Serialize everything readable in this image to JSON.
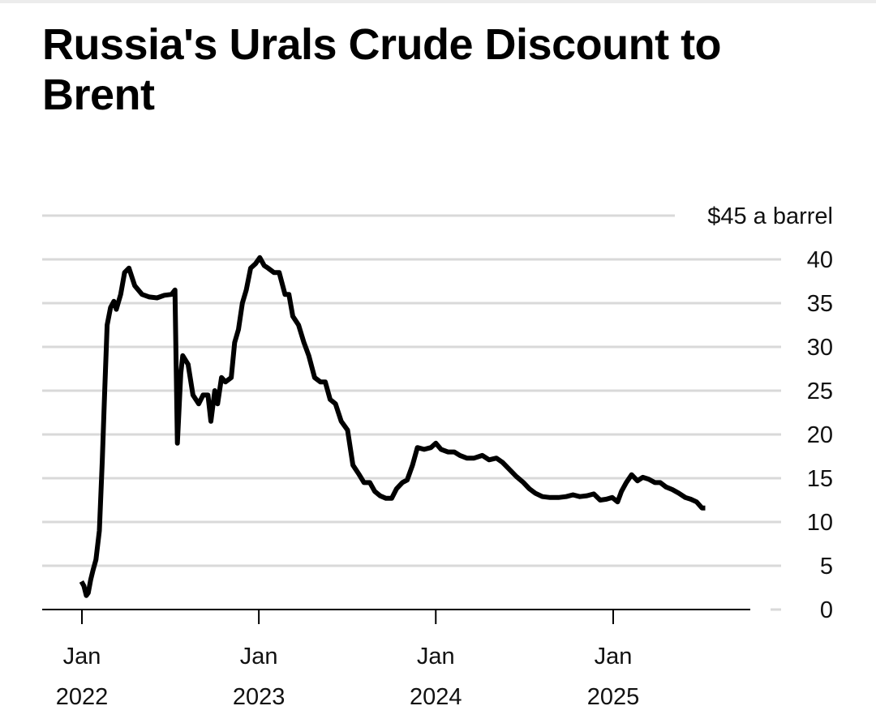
{
  "chart_data": {
    "type": "line",
    "title": "Russia's Urals Crude Discount to Brent",
    "y_unit_label": "$45 a barrel",
    "ylim": [
      0,
      45
    ],
    "y_ticks": [
      0,
      5,
      10,
      15,
      20,
      25,
      30,
      35,
      40
    ],
    "x_ticks": [
      {
        "date": "2022-01-01",
        "line1": "Jan",
        "line2": "2022"
      },
      {
        "date": "2023-01-01",
        "line1": "Jan",
        "line2": "2023"
      },
      {
        "date": "2024-01-01",
        "line1": "Jan",
        "line2": "2024"
      },
      {
        "date": "2025-01-01",
        "line1": "Jan",
        "line2": "2025"
      }
    ],
    "grid": true,
    "line_color": "#000000",
    "grid_color": "#d9d9d9",
    "series": [
      {
        "points": [
          [
            "2021-12-31",
            3.2
          ],
          [
            "2022-01-05",
            2.7
          ],
          [
            "2022-01-10",
            1.6
          ],
          [
            "2022-01-14",
            1.9
          ],
          [
            "2022-01-19",
            3.4
          ],
          [
            "2022-01-24",
            4.5
          ],
          [
            "2022-01-30",
            5.7
          ],
          [
            "2022-02-06",
            9
          ],
          [
            "2022-02-12",
            17
          ],
          [
            "2022-02-17",
            25
          ],
          [
            "2022-02-22",
            32.5
          ],
          [
            "2022-03-01",
            34.5
          ],
          [
            "2022-03-08",
            35.2
          ],
          [
            "2022-03-13",
            34.3
          ],
          [
            "2022-03-22",
            36
          ],
          [
            "2022-03-30",
            38.5
          ],
          [
            "2022-04-08",
            39
          ],
          [
            "2022-04-20",
            37
          ],
          [
            "2022-05-05",
            36
          ],
          [
            "2022-05-20",
            35.7
          ],
          [
            "2022-06-05",
            35.6
          ],
          [
            "2022-06-20",
            35.9
          ],
          [
            "2022-07-05",
            36
          ],
          [
            "2022-07-12",
            36.5
          ],
          [
            "2022-07-17",
            19
          ],
          [
            "2022-07-24",
            27
          ],
          [
            "2022-07-28",
            29
          ],
          [
            "2022-08-08",
            28
          ],
          [
            "2022-08-18",
            24.5
          ],
          [
            "2022-08-30",
            23.5
          ],
          [
            "2022-09-08",
            24.5
          ],
          [
            "2022-09-18",
            24.5
          ],
          [
            "2022-09-24",
            21.5
          ],
          [
            "2022-10-02",
            25
          ],
          [
            "2022-10-08",
            23.5
          ],
          [
            "2022-10-16",
            26.5
          ],
          [
            "2022-10-24",
            26
          ],
          [
            "2022-11-05",
            26.5
          ],
          [
            "2022-11-12",
            30.5
          ],
          [
            "2022-11-20",
            32
          ],
          [
            "2022-11-28",
            35
          ],
          [
            "2022-12-06",
            36.5
          ],
          [
            "2022-12-15",
            39
          ],
          [
            "2022-12-25",
            39.5
          ],
          [
            "2023-01-03",
            40.2
          ],
          [
            "2023-01-12",
            39.3
          ],
          [
            "2023-01-20",
            39
          ],
          [
            "2023-02-01",
            38.5
          ],
          [
            "2023-02-12",
            38.5
          ],
          [
            "2023-02-24",
            36
          ],
          [
            "2023-03-04",
            36
          ],
          [
            "2023-03-12",
            33.5
          ],
          [
            "2023-03-24",
            32.5
          ],
          [
            "2023-04-04",
            30.5
          ],
          [
            "2023-04-14",
            29
          ],
          [
            "2023-04-26",
            26.5
          ],
          [
            "2023-05-08",
            26
          ],
          [
            "2023-05-18",
            26
          ],
          [
            "2023-05-28",
            24
          ],
          [
            "2023-06-08",
            23.5
          ],
          [
            "2023-06-20",
            21.5
          ],
          [
            "2023-07-03",
            20.5
          ],
          [
            "2023-07-14",
            16.5
          ],
          [
            "2023-07-26",
            15.5
          ],
          [
            "2023-08-06",
            14.5
          ],
          [
            "2023-08-18",
            14.5
          ],
          [
            "2023-08-28",
            13.5
          ],
          [
            "2023-09-08",
            13
          ],
          [
            "2023-09-20",
            12.7
          ],
          [
            "2023-10-02",
            12.7
          ],
          [
            "2023-10-12",
            13.8
          ],
          [
            "2023-10-24",
            14.5
          ],
          [
            "2023-11-03",
            14.8
          ],
          [
            "2023-11-14",
            16.5
          ],
          [
            "2023-11-24",
            18.5
          ],
          [
            "2023-12-08",
            18.3
          ],
          [
            "2023-12-22",
            18.5
          ],
          [
            "2024-01-01",
            19
          ],
          [
            "2024-01-12",
            18.3
          ],
          [
            "2024-01-26",
            18
          ],
          [
            "2024-02-08",
            18
          ],
          [
            "2024-02-20",
            17.6
          ],
          [
            "2024-03-05",
            17.3
          ],
          [
            "2024-03-20",
            17.3
          ],
          [
            "2024-04-06",
            17.6
          ],
          [
            "2024-04-20",
            17.1
          ],
          [
            "2024-05-05",
            17.3
          ],
          [
            "2024-05-18",
            16.8
          ],
          [
            "2024-06-01",
            16
          ],
          [
            "2024-06-15",
            15.2
          ],
          [
            "2024-06-30",
            14.5
          ],
          [
            "2024-07-12",
            13.8
          ],
          [
            "2024-07-24",
            13.3
          ],
          [
            "2024-08-08",
            12.9
          ],
          [
            "2024-08-24",
            12.8
          ],
          [
            "2024-09-10",
            12.8
          ],
          [
            "2024-09-26",
            12.9
          ],
          [
            "2024-10-10",
            13.1
          ],
          [
            "2024-10-24",
            12.9
          ],
          [
            "2024-11-08",
            13
          ],
          [
            "2024-11-22",
            13.2
          ],
          [
            "2024-12-05",
            12.5
          ],
          [
            "2024-12-18",
            12.6
          ],
          [
            "2024-12-30",
            12.8
          ],
          [
            "2025-01-10",
            12.3
          ],
          [
            "2025-01-18",
            13.5
          ],
          [
            "2025-01-28",
            14.5
          ],
          [
            "2025-02-08",
            15.4
          ],
          [
            "2025-02-20",
            14.7
          ],
          [
            "2025-03-03",
            15.1
          ],
          [
            "2025-03-15",
            14.9
          ],
          [
            "2025-03-28",
            14.5
          ],
          [
            "2025-04-08",
            14.5
          ],
          [
            "2025-04-20",
            14
          ],
          [
            "2025-05-03",
            13.7
          ],
          [
            "2025-05-16",
            13.3
          ],
          [
            "2025-05-30",
            12.8
          ],
          [
            "2025-06-10",
            12.6
          ],
          [
            "2025-06-22",
            12.3
          ],
          [
            "2025-07-03",
            11.6
          ],
          [
            "2025-07-10",
            11.6
          ]
        ]
      }
    ]
  }
}
